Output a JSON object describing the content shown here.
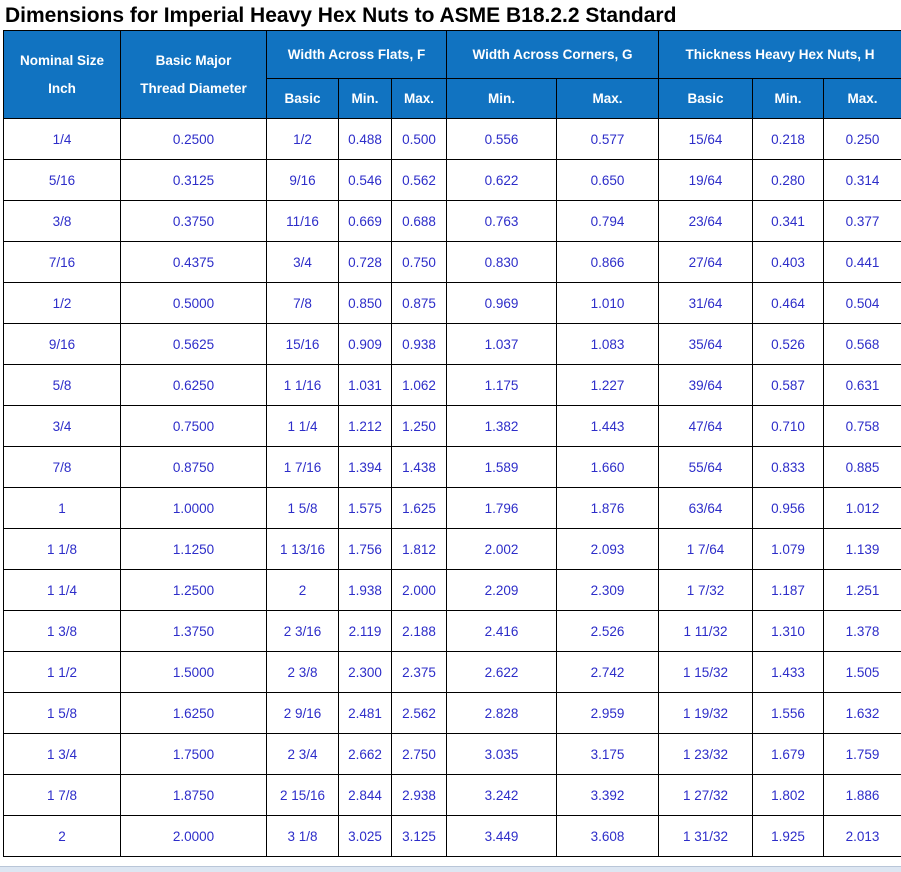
{
  "title": "Dimensions for Imperial Heavy Hex Nuts to ASME B18.2.2 Standard",
  "colors": {
    "header_bg": "#1173C1",
    "header_text": "#ffffff",
    "cell_text": "#2d2dc9",
    "grid_border": "#000000",
    "title_text": "#000000",
    "bottom_strip": "#dde6f2"
  },
  "table": {
    "header": {
      "nominal_size_line1": "Nominal Size",
      "nominal_size_line2": "Inch",
      "thread_diameter_line1": "Basic Major",
      "thread_diameter_line2": "Thread Diameter",
      "group_flats": "Width Across Flats, F",
      "group_corners": "Width Across Corners, G",
      "group_thickness": "Thickness Heavy Hex Nuts, H",
      "sub_flats": [
        "Basic",
        "Min.",
        "Max."
      ],
      "sub_corners": [
        "Min.",
        "Max."
      ],
      "sub_thickness": [
        "Basic",
        "Min.",
        "Max."
      ]
    },
    "rows": [
      [
        "1/4",
        "0.2500",
        "1/2",
        "0.488",
        "0.500",
        "0.556",
        "0.577",
        "15/64",
        "0.218",
        "0.250"
      ],
      [
        "5/16",
        "0.3125",
        "9/16",
        "0.546",
        "0.562",
        "0.622",
        "0.650",
        "19/64",
        "0.280",
        "0.314"
      ],
      [
        "3/8",
        "0.3750",
        "11/16",
        "0.669",
        "0.688",
        "0.763",
        "0.794",
        "23/64",
        "0.341",
        "0.377"
      ],
      [
        "7/16",
        "0.4375",
        "3/4",
        "0.728",
        "0.750",
        "0.830",
        "0.866",
        "27/64",
        "0.403",
        "0.441"
      ],
      [
        "1/2",
        "0.5000",
        "7/8",
        "0.850",
        "0.875",
        "0.969",
        "1.010",
        "31/64",
        "0.464",
        "0.504"
      ],
      [
        "9/16",
        "0.5625",
        "15/16",
        "0.909",
        "0.938",
        "1.037",
        "1.083",
        "35/64",
        "0.526",
        "0.568"
      ],
      [
        "5/8",
        "0.6250",
        "1 1/16",
        "1.031",
        "1.062",
        "1.175",
        "1.227",
        "39/64",
        "0.587",
        "0.631"
      ],
      [
        "3/4",
        "0.7500",
        "1 1/4",
        "1.212",
        "1.250",
        "1.382",
        "1.443",
        "47/64",
        "0.710",
        "0.758"
      ],
      [
        "7/8",
        "0.8750",
        "1 7/16",
        "1.394",
        "1.438",
        "1.589",
        "1.660",
        "55/64",
        "0.833",
        "0.885"
      ],
      [
        "1",
        "1.0000",
        "1 5/8",
        "1.575",
        "1.625",
        "1.796",
        "1.876",
        "63/64",
        "0.956",
        "1.012"
      ],
      [
        "1 1/8",
        "1.1250",
        "1 13/16",
        "1.756",
        "1.812",
        "2.002",
        "2.093",
        "1 7/64",
        "1.079",
        "1.139"
      ],
      [
        "1 1/4",
        "1.2500",
        "2",
        "1.938",
        "2.000",
        "2.209",
        "2.309",
        "1 7/32",
        "1.187",
        "1.251"
      ],
      [
        "1 3/8",
        "1.3750",
        "2 3/16",
        "2.119",
        "2.188",
        "2.416",
        "2.526",
        "1 11/32",
        "1.310",
        "1.378"
      ],
      [
        "1 1/2",
        "1.5000",
        "2 3/8",
        "2.300",
        "2.375",
        "2.622",
        "2.742",
        "1 15/32",
        "1.433",
        "1.505"
      ],
      [
        "1 5/8",
        "1.6250",
        "2 9/16",
        "2.481",
        "2.562",
        "2.828",
        "2.959",
        "1 19/32",
        "1.556",
        "1.632"
      ],
      [
        "1 3/4",
        "1.7500",
        "2 3/4",
        "2.662",
        "2.750",
        "3.035",
        "3.175",
        "1 23/32",
        "1.679",
        "1.759"
      ],
      [
        "1 7/8",
        "1.8750",
        "2 15/16",
        "2.844",
        "2.938",
        "3.242",
        "3.392",
        "1 27/32",
        "1.802",
        "1.886"
      ],
      [
        "2",
        "2.0000",
        "3 1/8",
        "3.025",
        "3.125",
        "3.449",
        "3.608",
        "1 31/32",
        "1.925",
        "2.013"
      ]
    ]
  }
}
